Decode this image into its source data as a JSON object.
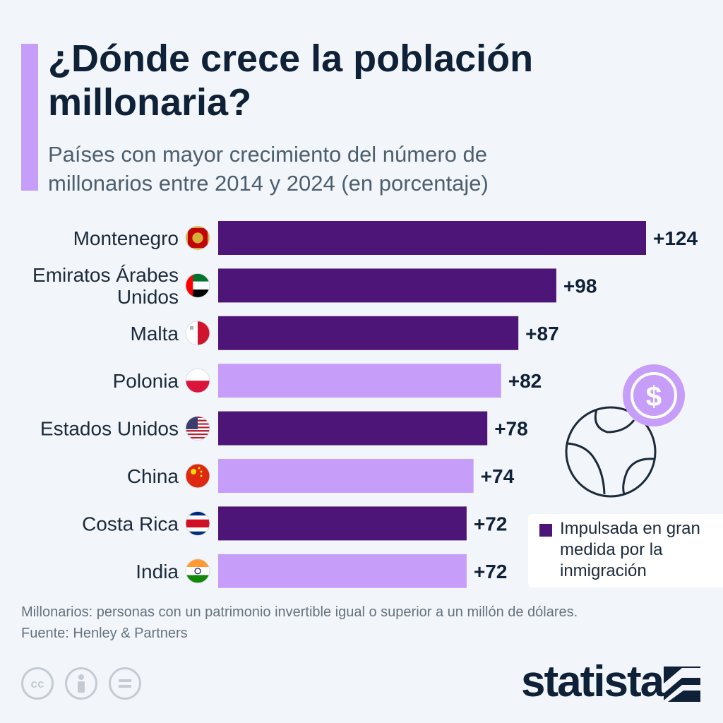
{
  "header": {
    "title": "¿Dónde crece la población millonaria?",
    "subtitle": "Países con mayor crecimiento del número de millonarios entre 2014 y 2024 (en porcentaje)"
  },
  "chart_data": {
    "type": "bar",
    "orientation": "horizontal",
    "title": "¿Dónde crece la población millonaria?",
    "subtitle": "Países con mayor crecimiento del número de millonarios entre 2014 y 2024 (en porcentaje)",
    "categories": [
      [
        "Montenegro"
      ],
      [
        "Emiratos Árabes",
        "Unidos"
      ],
      [
        "Malta"
      ],
      [
        "Polonia"
      ],
      [
        "Estados Unidos"
      ],
      [
        "China"
      ],
      [
        "Costa Rica"
      ],
      [
        "India"
      ]
    ],
    "values": [
      124,
      98,
      87,
      82,
      78,
      74,
      72,
      72
    ],
    "value_labels": [
      "+124",
      "+98",
      "+87",
      "+82",
      "+78",
      "+74",
      "+72",
      "+72"
    ],
    "immigration_driven": [
      true,
      true,
      true,
      false,
      true,
      false,
      true,
      false
    ],
    "flags": [
      "montenegro-flag-icon",
      "uae-flag-icon",
      "malta-flag-icon",
      "poland-flag-icon",
      "usa-flag-icon",
      "china-flag-icon",
      "costa-rica-flag-icon",
      "india-flag-icon"
    ],
    "xlim": [
      0,
      124
    ],
    "colors": {
      "highlight": "#4d1577",
      "default": "#c79dfa"
    },
    "legend": {
      "label": "Impulsada en gran medida por la inmigración",
      "position": "bottom-right"
    }
  },
  "footer": {
    "note": "Millonarios: personas con un patrimonio invertible igual o superior a un millón de dólares.",
    "source": "Fuente: Henley & Partners",
    "brand": "statista",
    "license_icons": [
      "cc-icon",
      "person-icon",
      "equals-icon"
    ]
  },
  "decorations": {
    "illustration": [
      "dollar-coin-icon",
      "globe-icon"
    ]
  }
}
